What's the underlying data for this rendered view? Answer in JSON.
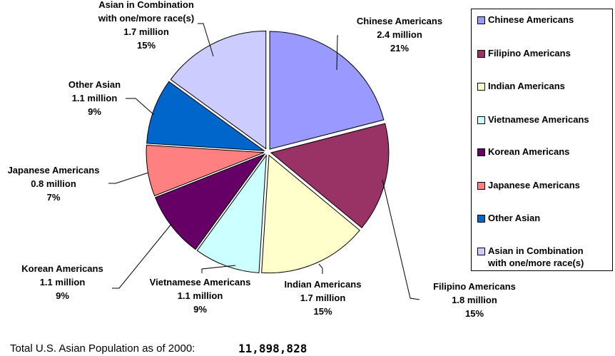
{
  "chart_data": {
    "type": "pie",
    "title": "",
    "start_angle_deg": 0,
    "direction": "clockwise",
    "slices": [
      {
        "label": "Chinese Americans",
        "value_text": "2.4 million",
        "value": 2.4,
        "percent": 21,
        "color": "#9999FF"
      },
      {
        "label": "Filipino Americans",
        "value_text": "1.8 million",
        "value": 1.8,
        "percent": 15,
        "color": "#993366"
      },
      {
        "label": "Indian Americans",
        "value_text": "1.7 million",
        "value": 1.7,
        "percent": 15,
        "color": "#FFFFCC"
      },
      {
        "label": "Vietnamese Americans",
        "value_text": "1.1 million",
        "value": 1.1,
        "percent": 9,
        "color": "#CCFFFF"
      },
      {
        "label": "Korean Americans",
        "value_text": "1.1 million",
        "value": 1.1,
        "percent": 9,
        "color": "#660066"
      },
      {
        "label": "Japanese Americans",
        "value_text": "0.8 million",
        "value": 0.8,
        "percent": 7,
        "color": "#FF8080"
      },
      {
        "label": "Other Asian",
        "value_text": "1.1 million",
        "value": 1.1,
        "percent": 9,
        "color": "#0066CC"
      },
      {
        "label": "Asian in Combination with one/more race(s)",
        "value_text": "1.7 million",
        "value": 1.7,
        "percent": 15,
        "color": "#CCCCFF"
      }
    ],
    "legend_position": "right",
    "unit": "million"
  },
  "labels": [
    {
      "lines": [
        "Chinese Americans",
        "2.4 million",
        "21%"
      ]
    },
    {
      "lines": [
        "Filipino Americans",
        "1.8 million",
        "15%"
      ]
    },
    {
      "lines": [
        "Indian Americans",
        "1.7 million",
        "15%"
      ]
    },
    {
      "lines": [
        "Vietnamese Americans",
        "1.1 million",
        "9%"
      ]
    },
    {
      "lines": [
        "Korean Americans",
        "1.1 million",
        "9%"
      ]
    },
    {
      "lines": [
        "Japanese Americans",
        "0.8 million",
        "7%"
      ]
    },
    {
      "lines": [
        "Other Asian",
        "1.1 million",
        "9%"
      ]
    },
    {
      "lines": [
        "Asian in Combination",
        "with one/more race(s)",
        "1.7 million",
        "15%"
      ]
    }
  ],
  "legend": {
    "items": [
      {
        "lines": [
          "Chinese Americans"
        ],
        "color": "#9999FF"
      },
      {
        "lines": [
          "Filipino Americans"
        ],
        "color": "#993366"
      },
      {
        "lines": [
          "Indian Americans"
        ],
        "color": "#FFFFCC"
      },
      {
        "lines": [
          "Vietnamese Americans"
        ],
        "color": "#CCFFFF"
      },
      {
        "lines": [
          "Korean Americans"
        ],
        "color": "#660066"
      },
      {
        "lines": [
          "Japanese Americans"
        ],
        "color": "#FF8080"
      },
      {
        "lines": [
          "Other Asian"
        ],
        "color": "#0066CC"
      },
      {
        "lines": [
          "Asian in Combination",
          "with one/more race(s)"
        ],
        "color": "#CCCCFF"
      }
    ]
  },
  "footer": {
    "label": "Total U.S. Asian Population as of 2000:",
    "value": "11,898,828"
  }
}
